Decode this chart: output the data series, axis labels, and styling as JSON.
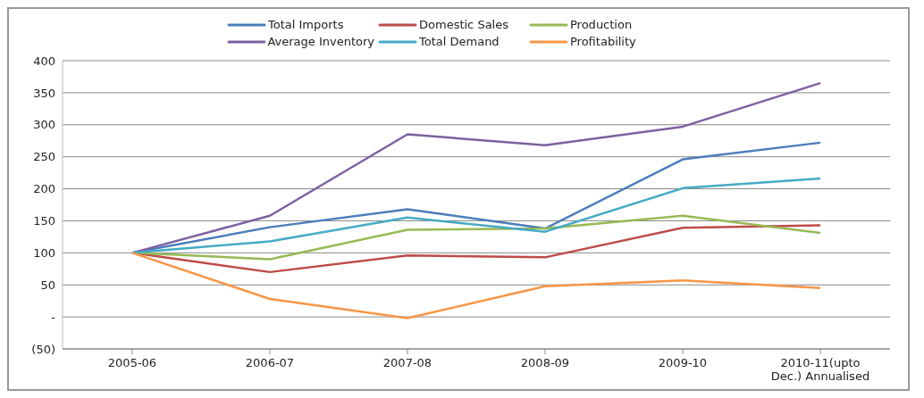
{
  "chart_data": {
    "type": "line",
    "categories": [
      "2005-06",
      "2006-07",
      "2007-08",
      "2008-09",
      "2009-10",
      "2010-11(upto Dec.) Annualised"
    ],
    "series": [
      {
        "name": "Total Imports",
        "color": "#4a7ebb",
        "values": [
          100,
          140,
          168,
          138,
          246,
          272
        ]
      },
      {
        "name": "Domestic Sales",
        "color": "#be4b48",
        "values": [
          100,
          70,
          96,
          93,
          139,
          143
        ]
      },
      {
        "name": "Production",
        "color": "#98b954",
        "values": [
          100,
          90,
          136,
          138,
          158,
          131
        ]
      },
      {
        "name": "Average Inventory",
        "color": "#7d60a0",
        "values": [
          100,
          158,
          285,
          268,
          297,
          365
        ]
      },
      {
        "name": "Total Demand",
        "color": "#46aac5",
        "values": [
          100,
          118,
          155,
          133,
          201,
          216
        ]
      },
      {
        "name": "Profitability",
        "color": "#f79646",
        "values": [
          100,
          28,
          -2,
          48,
          57,
          45
        ]
      }
    ],
    "ylim": [
      -50,
      400
    ],
    "yticks": [
      {
        "value": -50,
        "label": "(50)"
      },
      {
        "value": 0,
        "label": "-"
      },
      50,
      100,
      150,
      200,
      250,
      300,
      350,
      400
    ],
    "grid": "y",
    "legend": "top",
    "marker": "none",
    "line_style": "solid"
  }
}
